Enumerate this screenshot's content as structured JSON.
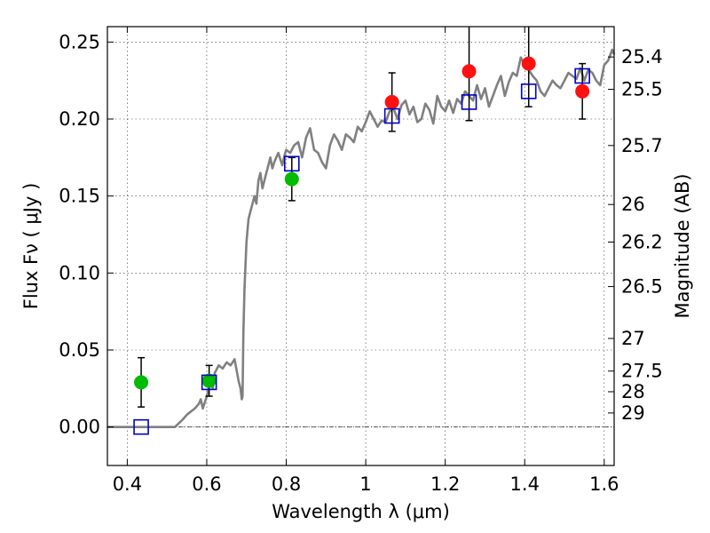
{
  "chart_data": {
    "type": "scatter",
    "xlabel": "Wavelength  λ (μm)",
    "ylabel": "Flux  Fν  ( μJy )",
    "y2label": "Magnitude (AB)",
    "xlim": [
      0.35,
      1.625
    ],
    "ylim": [
      -0.025,
      0.26
    ],
    "grid": true,
    "x_ticks": [
      0.4,
      0.6,
      0.8,
      1.0,
      1.2,
      1.4,
      1.6
    ],
    "x_tick_labels": [
      "0.4",
      "0.6",
      "0.8",
      "1",
      "1.2",
      "1.4",
      "1.6"
    ],
    "y_ticks": [
      0.0,
      0.05,
      0.1,
      0.15,
      0.2,
      0.25
    ],
    "y_tick_labels": [
      "0.00",
      "0.05",
      "0.10",
      "0.15",
      "0.20",
      "0.25"
    ],
    "mag_ticks": [
      {
        "flux": 0.2403,
        "label": "25.4"
      },
      {
        "flux": 0.2193,
        "label": "25.5"
      },
      {
        "flux": 0.1828,
        "label": "25.7"
      },
      {
        "flux": 0.1445,
        "label": "26"
      },
      {
        "flux": 0.1201,
        "label": "26.2"
      },
      {
        "flux": 0.0912,
        "label": "26.5"
      },
      {
        "flux": 0.0575,
        "label": "27"
      },
      {
        "flux": 0.0363,
        "label": "27.5"
      },
      {
        "flux": 0.0229,
        "label": "28"
      },
      {
        "flux": 0.0091,
        "label": "29"
      }
    ],
    "colors": {
      "sed": "#808080",
      "green": "#00bb00",
      "red": "#ff1111",
      "model": "#0000cc"
    },
    "sed": {
      "name": "",
      "x": [
        0.35,
        0.38,
        0.42,
        0.46,
        0.5,
        0.52,
        0.54,
        0.55,
        0.56,
        0.57,
        0.58,
        0.585,
        0.59,
        0.6,
        0.61,
        0.615,
        0.62,
        0.63,
        0.64,
        0.65,
        0.66,
        0.67,
        0.68,
        0.685,
        0.688,
        0.69,
        0.692,
        0.695,
        0.7,
        0.705,
        0.71,
        0.715,
        0.72,
        0.725,
        0.73,
        0.735,
        0.74,
        0.745,
        0.75,
        0.755,
        0.76,
        0.765,
        0.77,
        0.775,
        0.78,
        0.785,
        0.79,
        0.795,
        0.8,
        0.81,
        0.82,
        0.83,
        0.84,
        0.85,
        0.86,
        0.87,
        0.88,
        0.89,
        0.9,
        0.91,
        0.92,
        0.93,
        0.94,
        0.95,
        0.96,
        0.97,
        0.98,
        0.99,
        1.0,
        1.01,
        1.02,
        1.03,
        1.04,
        1.05,
        1.06,
        1.07,
        1.08,
        1.09,
        1.1,
        1.11,
        1.12,
        1.13,
        1.14,
        1.15,
        1.16,
        1.17,
        1.18,
        1.19,
        1.2,
        1.21,
        1.22,
        1.23,
        1.24,
        1.25,
        1.26,
        1.27,
        1.28,
        1.29,
        1.3,
        1.31,
        1.32,
        1.33,
        1.34,
        1.35,
        1.36,
        1.37,
        1.38,
        1.39,
        1.4,
        1.41,
        1.42,
        1.43,
        1.44,
        1.45,
        1.46,
        1.47,
        1.48,
        1.49,
        1.5,
        1.51,
        1.52,
        1.53,
        1.54,
        1.55,
        1.56,
        1.57,
        1.58,
        1.59,
        1.6,
        1.61,
        1.62,
        1.625
      ],
      "y": [
        0.0,
        0.0,
        0.0,
        0.0,
        0.0,
        0.0,
        0.005,
        0.008,
        0.01,
        0.012,
        0.015,
        0.018,
        0.012,
        0.02,
        0.03,
        0.025,
        0.035,
        0.04,
        0.038,
        0.042,
        0.04,
        0.044,
        0.03,
        0.025,
        0.018,
        0.02,
        0.06,
        0.09,
        0.12,
        0.135,
        0.14,
        0.145,
        0.15,
        0.145,
        0.16,
        0.165,
        0.155,
        0.16,
        0.165,
        0.17,
        0.175,
        0.168,
        0.172,
        0.175,
        0.178,
        0.174,
        0.17,
        0.176,
        0.18,
        0.178,
        0.183,
        0.185,
        0.175,
        0.188,
        0.194,
        0.18,
        0.178,
        0.172,
        0.168,
        0.183,
        0.19,
        0.186,
        0.18,
        0.19,
        0.188,
        0.185,
        0.195,
        0.192,
        0.198,
        0.205,
        0.2,
        0.195,
        0.199,
        0.198,
        0.205,
        0.207,
        0.2,
        0.209,
        0.212,
        0.203,
        0.208,
        0.198,
        0.2,
        0.21,
        0.206,
        0.197,
        0.215,
        0.208,
        0.205,
        0.212,
        0.204,
        0.213,
        0.21,
        0.218,
        0.215,
        0.212,
        0.222,
        0.213,
        0.22,
        0.208,
        0.215,
        0.222,
        0.228,
        0.215,
        0.224,
        0.23,
        0.228,
        0.24,
        0.235,
        0.232,
        0.228,
        0.225,
        0.218,
        0.215,
        0.22,
        0.225,
        0.222,
        0.22,
        0.225,
        0.23,
        0.228,
        0.226,
        0.233,
        0.225,
        0.232,
        0.23,
        0.225,
        0.222,
        0.235,
        0.238,
        0.245,
        0.242
      ]
    },
    "filter_points": {
      "name": "",
      "x": [
        0.435,
        0.606,
        0.814
      ],
      "y": [
        0.029,
        0.03,
        0.161
      ],
      "err": [
        0.016,
        0.01,
        0.014
      ]
    },
    "filter_points_ir": {
      "name": "",
      "x": [
        1.066,
        1.26,
        1.41,
        1.545
      ],
      "y": [
        0.211,
        0.231,
        0.236,
        0.218
      ],
      "err": [
        0.019,
        0.032,
        0.028,
        0.018
      ]
    },
    "model_fluxes": {
      "name": "",
      "x": [
        0.435,
        0.606,
        0.814,
        1.066,
        1.26,
        1.41,
        1.545
      ],
      "y": [
        0.0,
        0.029,
        0.171,
        0.202,
        0.211,
        0.218,
        0.228
      ]
    }
  }
}
